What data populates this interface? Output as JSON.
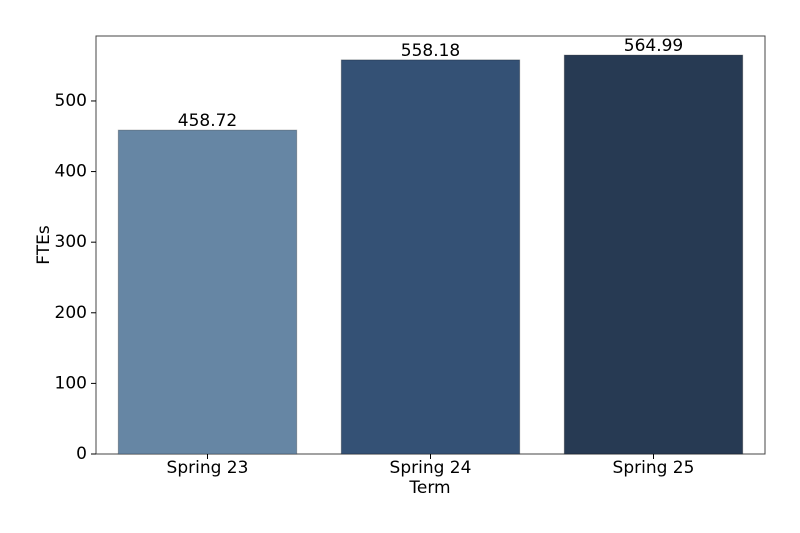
{
  "chart_data": {
    "type": "bar",
    "x_label": "Term",
    "y_label": "FTEs",
    "categories": [
      "Spring 23",
      "Spring 24",
      "Spring 25"
    ],
    "values": [
      458.72,
      558.18,
      564.99
    ],
    "colors": [
      "#6686a4",
      "#345175",
      "#273a53"
    ],
    "ylim": [
      0,
      592
    ],
    "yticks": [
      0,
      100,
      200,
      300,
      400,
      500
    ],
    "grid": false
  }
}
